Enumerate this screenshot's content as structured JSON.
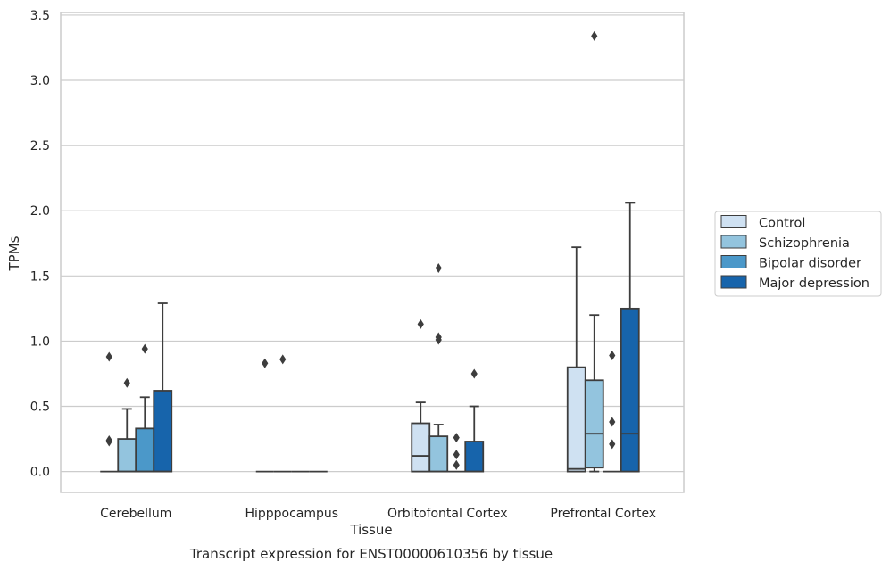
{
  "chart_data": {
    "type": "boxplot",
    "caption": "Transcript expression for ENST00000610356 by tissue",
    "xlabel": "Tissue",
    "ylabel": "TPMs",
    "ylim": [
      -0.16,
      3.52
    ],
    "yticks": [
      "0.0",
      "0.5",
      "1.0",
      "1.5",
      "2.0",
      "2.5",
      "3.0",
      "3.5"
    ],
    "grid": "horizontal",
    "legend_position": "right",
    "categories": [
      "Cerebellum",
      "Hipppocampus",
      "Orbitofontal Cortex",
      "Prefrontal Cortex"
    ],
    "colors": {
      "Control": "#cfe1f2",
      "Schizophrenia": "#93c4de",
      "Bipolar disorder": "#4b98c9",
      "Major depression": "#1764ab"
    },
    "series": [
      {
        "name": "Control",
        "boxes": [
          {
            "q1": 0,
            "median": 0,
            "q3": 0,
            "whislo": 0,
            "whishi": 0,
            "fliers": [
              0.24,
              0.23,
              0.88
            ]
          },
          {
            "q1": 0,
            "median": 0,
            "q3": 0,
            "whislo": 0,
            "whishi": 0,
            "fliers": [
              0.83
            ]
          },
          {
            "q1": 0,
            "median": 0.12,
            "q3": 0.37,
            "whislo": 0,
            "whishi": 0.53,
            "fliers": [
              1.13
            ]
          },
          {
            "q1": 0,
            "median": 0.02,
            "q3": 0.8,
            "whislo": 0,
            "whishi": 1.72,
            "fliers": []
          }
        ]
      },
      {
        "name": "Schizophrenia",
        "boxes": [
          {
            "q1": 0,
            "median": 0,
            "q3": 0.25,
            "whislo": 0,
            "whishi": 0.48,
            "fliers": [
              0.68
            ]
          },
          {
            "q1": 0,
            "median": 0,
            "q3": 0,
            "whislo": 0,
            "whishi": 0,
            "fliers": [
              0.86
            ]
          },
          {
            "q1": 0,
            "median": 0,
            "q3": 0.27,
            "whislo": 0,
            "whishi": 0.36,
            "fliers": [
              1.01,
              1.03,
              1.56
            ]
          },
          {
            "q1": 0.03,
            "median": 0.29,
            "q3": 0.7,
            "whislo": 0,
            "whishi": 1.2,
            "fliers": [
              3.34
            ]
          }
        ]
      },
      {
        "name": "Bipolar disorder",
        "boxes": [
          {
            "q1": 0,
            "median": 0,
            "q3": 0.33,
            "whislo": 0,
            "whishi": 0.57,
            "fliers": [
              0.94
            ]
          },
          {
            "q1": 0,
            "median": 0,
            "q3": 0,
            "whislo": 0,
            "whishi": 0,
            "fliers": []
          },
          {
            "q1": 0,
            "median": 0,
            "q3": 0,
            "whislo": 0,
            "whishi": 0,
            "fliers": [
              0.05,
              0.13,
              0.26
            ]
          },
          {
            "q1": 0,
            "median": 0,
            "q3": 0,
            "whislo": 0,
            "whishi": 0,
            "fliers": [
              0.21,
              0.38,
              0.89
            ]
          }
        ]
      },
      {
        "name": "Major depression",
        "boxes": [
          {
            "q1": 0,
            "median": 0,
            "q3": 0.62,
            "whislo": 0,
            "whishi": 1.29,
            "fliers": []
          },
          {
            "q1": 0,
            "median": 0,
            "q3": 0,
            "whislo": 0,
            "whishi": 0,
            "fliers": []
          },
          {
            "q1": 0,
            "median": 0,
            "q3": 0.23,
            "whislo": 0,
            "whishi": 0.5,
            "fliers": [
              0.75
            ]
          },
          {
            "q1": 0,
            "median": 0.29,
            "q3": 1.25,
            "whislo": 0,
            "whishi": 2.06,
            "fliers": []
          }
        ]
      }
    ]
  }
}
